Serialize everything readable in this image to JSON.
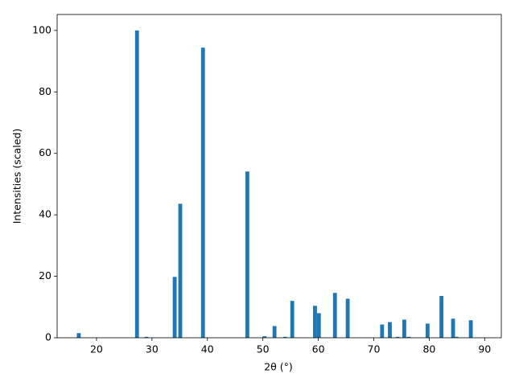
{
  "chart_data": {
    "type": "bar",
    "x_label": "2θ (°)",
    "y_label": "Intensities (scaled)",
    "x": [
      16.8,
      27.3,
      29.0,
      34.1,
      35.1,
      39.2,
      47.2,
      50.3,
      52.1,
      54.0,
      55.3,
      59.4,
      60.1,
      63.0,
      65.3,
      71.5,
      72.9,
      74.3,
      75.5,
      76.3,
      79.7,
      82.2,
      84.3,
      84.9,
      87.5
    ],
    "values": [
      1.5,
      100,
      0.3,
      19.8,
      43.6,
      94.4,
      54.1,
      0.5,
      3.8,
      0.3,
      12.0,
      10.4,
      8.0,
      14.6,
      12.7,
      4.3,
      5.1,
      0.3,
      5.9,
      0.3,
      4.6,
      13.6,
      6.2,
      0.3,
      5.7
    ],
    "color": "#1f77b4",
    "xlim": [
      12.9,
      93.0
    ],
    "ylim": [
      0,
      105.2
    ],
    "xticks": [
      20,
      30,
      40,
      50,
      60,
      70,
      80,
      90
    ],
    "yticks": [
      0,
      20,
      40,
      60,
      80,
      100
    ]
  }
}
